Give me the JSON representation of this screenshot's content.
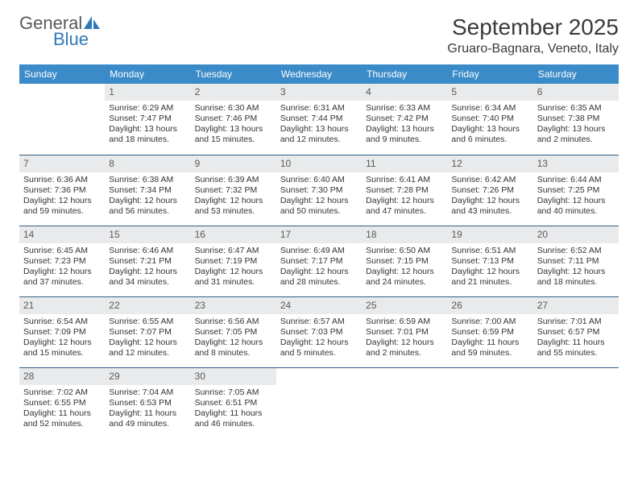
{
  "logo": {
    "word1": "General",
    "word2": "Blue"
  },
  "title": "September 2025",
  "location": "Gruaro-Bagnara, Veneto, Italy",
  "header_bg": "#3b8bc8",
  "header_fg": "#ffffff",
  "daynum_bg": "#e9eaeb",
  "divider_color": "#305f86",
  "text_color": "#333333",
  "title_fontsize": 28,
  "location_fontsize": 16,
  "dow_fontsize": 12,
  "cell_fontsize": 10.5,
  "days_of_week": [
    "Sunday",
    "Monday",
    "Tuesday",
    "Wednesday",
    "Thursday",
    "Friday",
    "Saturday"
  ],
  "leading_blanks": 1,
  "days": [
    {
      "n": 1,
      "sunrise": "6:29 AM",
      "sunset": "7:47 PM",
      "daylight": "13 hours and 18 minutes."
    },
    {
      "n": 2,
      "sunrise": "6:30 AM",
      "sunset": "7:46 PM",
      "daylight": "13 hours and 15 minutes."
    },
    {
      "n": 3,
      "sunrise": "6:31 AM",
      "sunset": "7:44 PM",
      "daylight": "13 hours and 12 minutes."
    },
    {
      "n": 4,
      "sunrise": "6:33 AM",
      "sunset": "7:42 PM",
      "daylight": "13 hours and 9 minutes."
    },
    {
      "n": 5,
      "sunrise": "6:34 AM",
      "sunset": "7:40 PM",
      "daylight": "13 hours and 6 minutes."
    },
    {
      "n": 6,
      "sunrise": "6:35 AM",
      "sunset": "7:38 PM",
      "daylight": "13 hours and 2 minutes."
    },
    {
      "n": 7,
      "sunrise": "6:36 AM",
      "sunset": "7:36 PM",
      "daylight": "12 hours and 59 minutes."
    },
    {
      "n": 8,
      "sunrise": "6:38 AM",
      "sunset": "7:34 PM",
      "daylight": "12 hours and 56 minutes."
    },
    {
      "n": 9,
      "sunrise": "6:39 AM",
      "sunset": "7:32 PM",
      "daylight": "12 hours and 53 minutes."
    },
    {
      "n": 10,
      "sunrise": "6:40 AM",
      "sunset": "7:30 PM",
      "daylight": "12 hours and 50 minutes."
    },
    {
      "n": 11,
      "sunrise": "6:41 AM",
      "sunset": "7:28 PM",
      "daylight": "12 hours and 47 minutes."
    },
    {
      "n": 12,
      "sunrise": "6:42 AM",
      "sunset": "7:26 PM",
      "daylight": "12 hours and 43 minutes."
    },
    {
      "n": 13,
      "sunrise": "6:44 AM",
      "sunset": "7:25 PM",
      "daylight": "12 hours and 40 minutes."
    },
    {
      "n": 14,
      "sunrise": "6:45 AM",
      "sunset": "7:23 PM",
      "daylight": "12 hours and 37 minutes."
    },
    {
      "n": 15,
      "sunrise": "6:46 AM",
      "sunset": "7:21 PM",
      "daylight": "12 hours and 34 minutes."
    },
    {
      "n": 16,
      "sunrise": "6:47 AM",
      "sunset": "7:19 PM",
      "daylight": "12 hours and 31 minutes."
    },
    {
      "n": 17,
      "sunrise": "6:49 AM",
      "sunset": "7:17 PM",
      "daylight": "12 hours and 28 minutes."
    },
    {
      "n": 18,
      "sunrise": "6:50 AM",
      "sunset": "7:15 PM",
      "daylight": "12 hours and 24 minutes."
    },
    {
      "n": 19,
      "sunrise": "6:51 AM",
      "sunset": "7:13 PM",
      "daylight": "12 hours and 21 minutes."
    },
    {
      "n": 20,
      "sunrise": "6:52 AM",
      "sunset": "7:11 PM",
      "daylight": "12 hours and 18 minutes."
    },
    {
      "n": 21,
      "sunrise": "6:54 AM",
      "sunset": "7:09 PM",
      "daylight": "12 hours and 15 minutes."
    },
    {
      "n": 22,
      "sunrise": "6:55 AM",
      "sunset": "7:07 PM",
      "daylight": "12 hours and 12 minutes."
    },
    {
      "n": 23,
      "sunrise": "6:56 AM",
      "sunset": "7:05 PM",
      "daylight": "12 hours and 8 minutes."
    },
    {
      "n": 24,
      "sunrise": "6:57 AM",
      "sunset": "7:03 PM",
      "daylight": "12 hours and 5 minutes."
    },
    {
      "n": 25,
      "sunrise": "6:59 AM",
      "sunset": "7:01 PM",
      "daylight": "12 hours and 2 minutes."
    },
    {
      "n": 26,
      "sunrise": "7:00 AM",
      "sunset": "6:59 PM",
      "daylight": "11 hours and 59 minutes."
    },
    {
      "n": 27,
      "sunrise": "7:01 AM",
      "sunset": "6:57 PM",
      "daylight": "11 hours and 55 minutes."
    },
    {
      "n": 28,
      "sunrise": "7:02 AM",
      "sunset": "6:55 PM",
      "daylight": "11 hours and 52 minutes."
    },
    {
      "n": 29,
      "sunrise": "7:04 AM",
      "sunset": "6:53 PM",
      "daylight": "11 hours and 49 minutes."
    },
    {
      "n": 30,
      "sunrise": "7:05 AM",
      "sunset": "6:51 PM",
      "daylight": "11 hours and 46 minutes."
    }
  ],
  "labels": {
    "sunrise": "Sunrise:",
    "sunset": "Sunset:",
    "daylight": "Daylight:"
  }
}
